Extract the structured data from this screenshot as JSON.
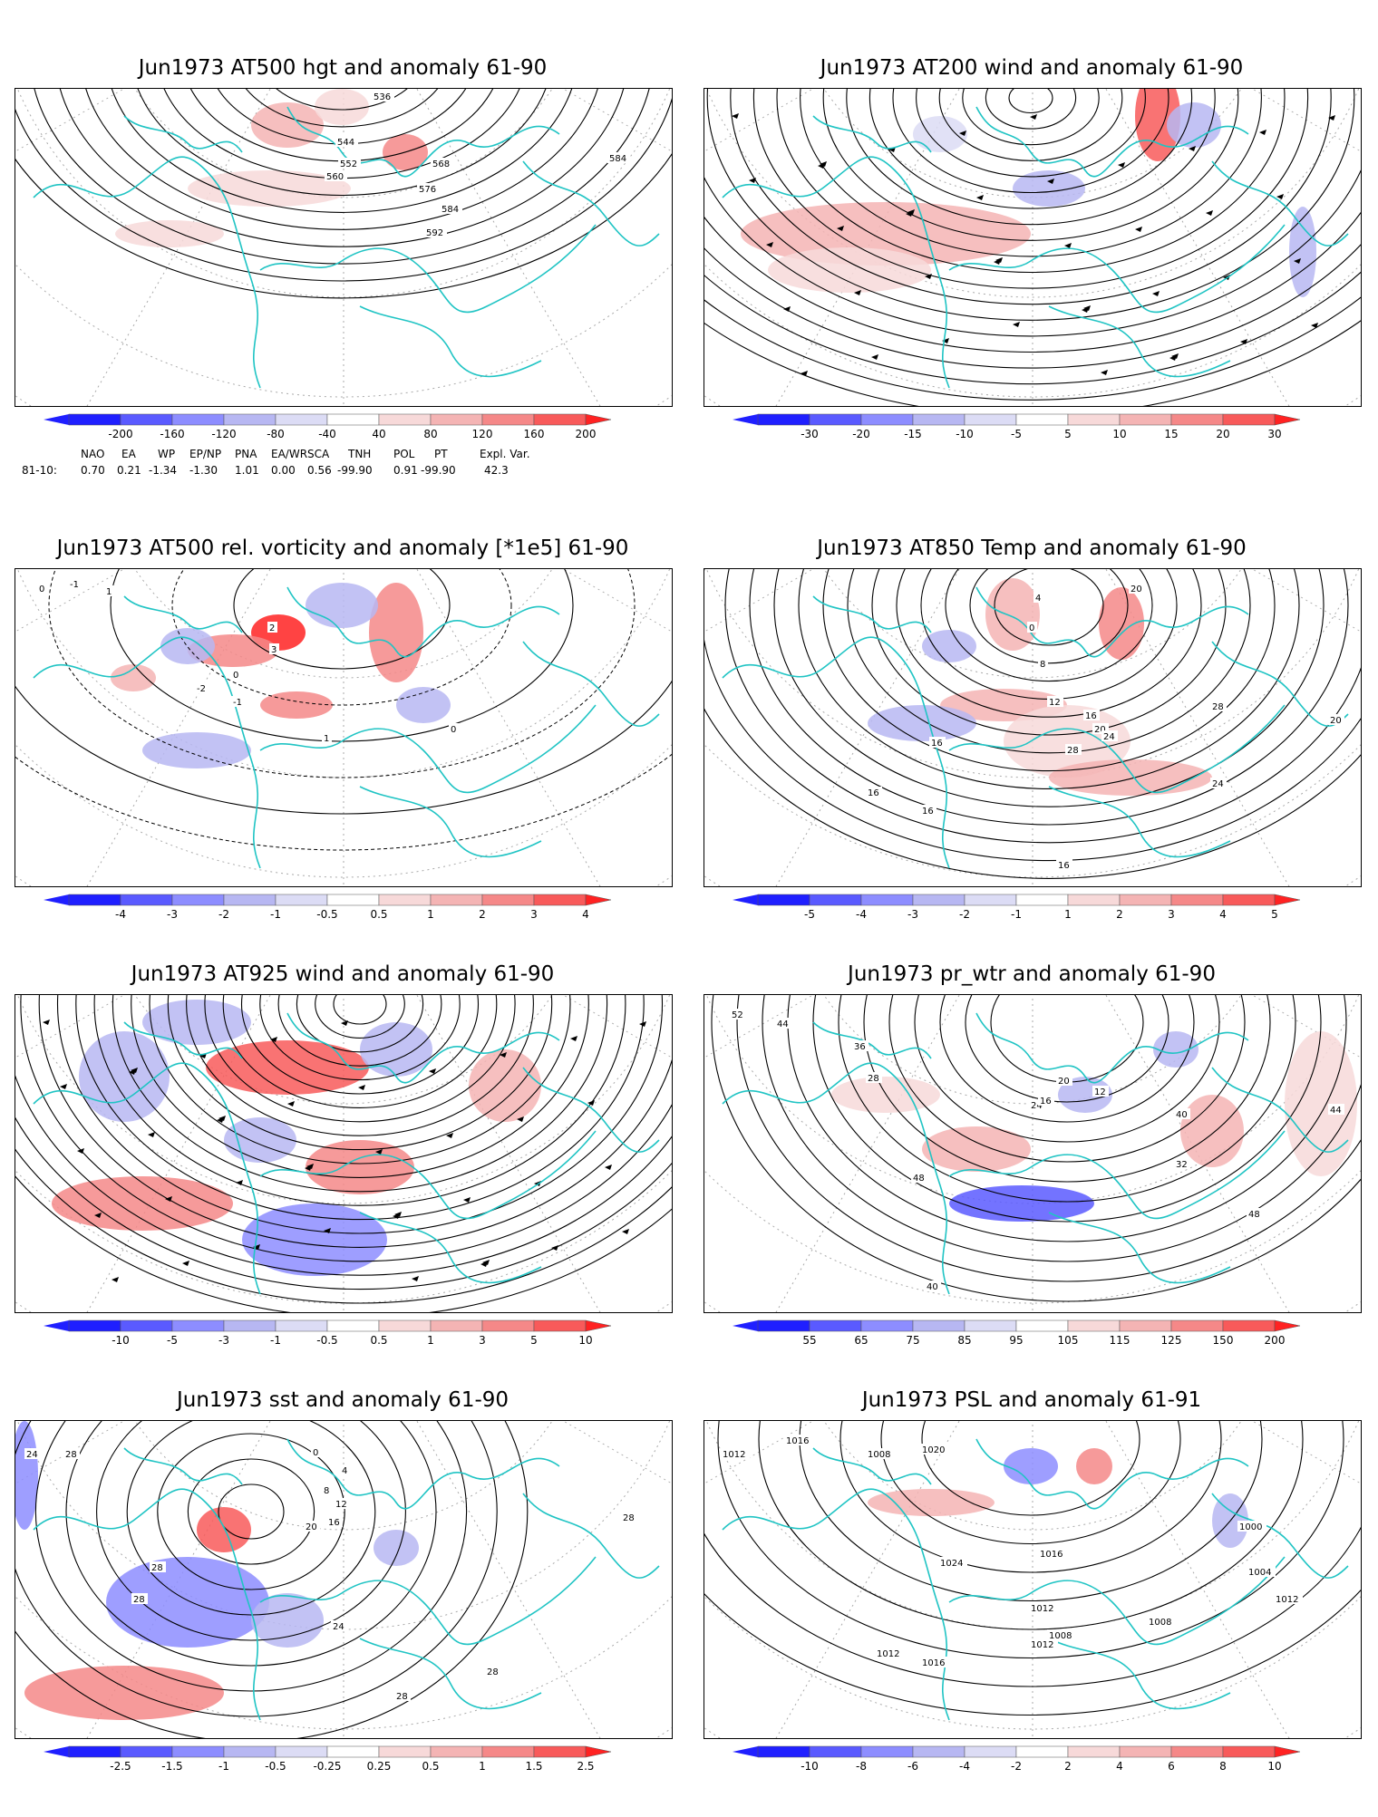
{
  "panels": [
    {
      "title": "Jun1973 AT500 hgt and anomaly 61-90",
      "colorbar": [
        "-200",
        "-160",
        "-120",
        "-80",
        "-40",
        "40",
        "80",
        "120",
        "160",
        "200"
      ],
      "contour_labels": [
        "536",
        "544",
        "552",
        "560",
        "568",
        "576",
        "584",
        "592",
        "584"
      ]
    },
    {
      "title": "Jun1973 AT200 wind and anomaly 61-90",
      "colorbar": [
        "-30",
        "-20",
        "-15",
        "-10",
        "-5",
        "5",
        "10",
        "15",
        "20",
        "30"
      ],
      "contour_labels": []
    },
    {
      "title": "Jun1973 AT500 rel. vorticity and anomaly [*1e5] 61-90",
      "colorbar": [
        "-4",
        "-3",
        "-2",
        "-1",
        "-0.5",
        "0.5",
        "1",
        "2",
        "3",
        "4"
      ],
      "contour_labels": [
        "0",
        "-1",
        "1",
        "2",
        "3",
        "-2",
        "0",
        "-1",
        "1",
        "0"
      ]
    },
    {
      "title": "Jun1973 AT850 Temp and anomaly 61-90",
      "colorbar": [
        "-5",
        "-4",
        "-3",
        "-2",
        "-1",
        "1",
        "2",
        "3",
        "4",
        "5"
      ],
      "contour_labels": [
        "4",
        "0",
        "8",
        "12",
        "16",
        "20",
        "24",
        "28",
        "16",
        "20",
        "24",
        "16",
        "16",
        "16",
        "20",
        "28"
      ]
    },
    {
      "title": "Jun1973 AT925 wind and anomaly 61-90",
      "colorbar": [
        "-10",
        "-5",
        "-3",
        "-1",
        "-0.5",
        "0.5",
        "1",
        "3",
        "5",
        "10"
      ],
      "contour_labels": []
    },
    {
      "title": "Jun1973 pr_wtr and anomaly 61-90",
      "colorbar": [
        "55",
        "65",
        "75",
        "85",
        "95",
        "105",
        "115",
        "125",
        "150",
        "200"
      ],
      "contour_labels": [
        "52",
        "44",
        "36",
        "28",
        "20",
        "12",
        "24",
        "16",
        "40",
        "48",
        "32",
        "44",
        "48",
        "40"
      ]
    },
    {
      "title": "Jun1973 sst and anomaly 61-90",
      "colorbar": [
        "-2.5",
        "-1.5",
        "-1",
        "-0.5",
        "-0.25",
        "0.25",
        "0.5",
        "1",
        "1.5",
        "2.5"
      ],
      "contour_labels": [
        "24",
        "28",
        "28",
        "0",
        "4",
        "8",
        "12",
        "16",
        "20",
        "24",
        "28",
        "28",
        "28",
        "28"
      ]
    },
    {
      "title": "Jun1973 PSL and anomaly 61-91",
      "colorbar": [
        "-10",
        "-8",
        "-6",
        "-4",
        "-2",
        "2",
        "4",
        "6",
        "8",
        "10"
      ],
      "contour_labels": [
        "1012",
        "1016",
        "1008",
        "1020",
        "1024",
        "1016",
        "1012",
        "1008",
        "1012",
        "1004",
        "1000",
        "1012",
        "1016",
        "1008",
        "1012"
      ]
    }
  ],
  "indices": {
    "headers": [
      "NAO",
      "EA",
      "WP",
      "EP/NP",
      "PNA",
      "EA/WR",
      "SCA",
      "TNH",
      "POL",
      "PT",
      "Expl. Var."
    ],
    "row_label": "81-10:",
    "values": [
      "0.70",
      "0.21",
      "-1.34",
      "-1.30",
      "1.01",
      "0.00",
      "0.56",
      "-99.90",
      "0.91",
      "-99.90",
      "42.3"
    ]
  },
  "colors": {
    "coast": "#20c4c4",
    "contour": "#000000",
    "grid": "#aaaaaa",
    "scale": [
      "#1f1fff",
      "#5a5aff",
      "#8d8dff",
      "#b7b7f2",
      "#dcdcf5",
      "#ffffff",
      "#f7d9d9",
      "#f4b4b4",
      "#f58888",
      "#f85a5a",
      "#ff2222"
    ]
  }
}
